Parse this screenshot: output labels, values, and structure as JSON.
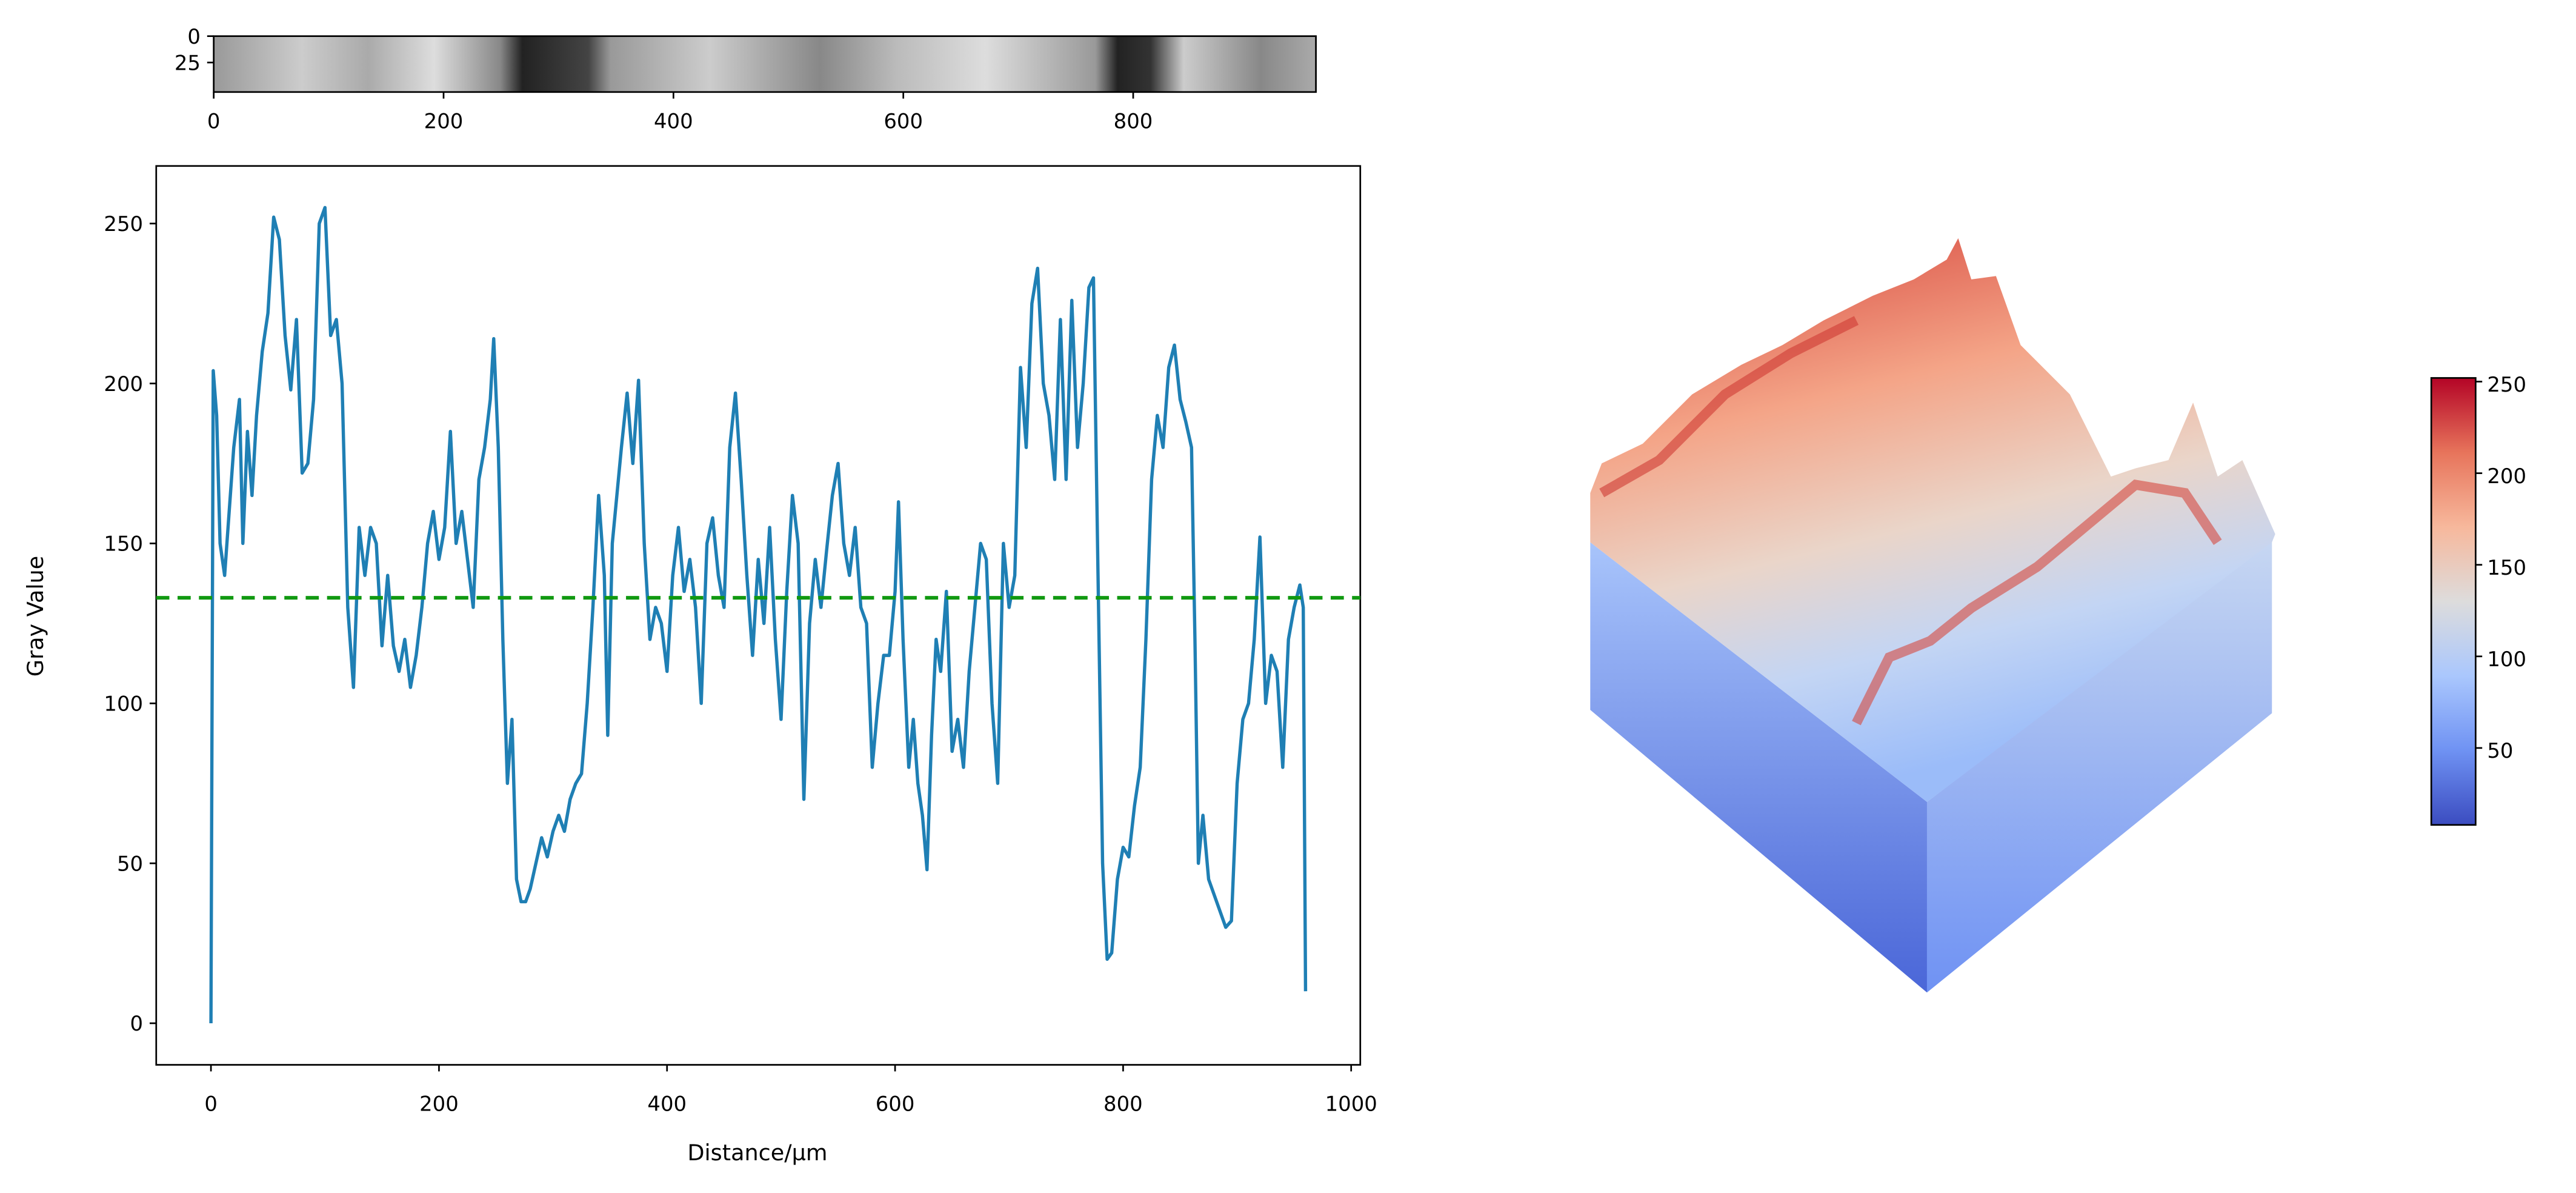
{
  "chart_data": [
    {
      "type": "image",
      "xlim": [
        0,
        959
      ],
      "ylim": [
        0,
        53
      ],
      "y_inverted": true,
      "xticks": [
        0,
        200,
        400,
        600,
        800
      ],
      "yticks": [
        0,
        25
      ]
    },
    {
      "type": "line",
      "xlabel": "Distance/µm",
      "ylabel": "Gray Value",
      "xlim": [
        -48,
        1008
      ],
      "ylim": [
        -13,
        268
      ],
      "xticks": [
        0,
        200,
        400,
        600,
        800,
        1000
      ],
      "yticks": [
        0,
        50,
        100,
        150,
        200,
        250
      ],
      "color": "#1f7fb4",
      "x": [
        0,
        2,
        5,
        8,
        12,
        16,
        20,
        25,
        28,
        32,
        36,
        40,
        45,
        50,
        55,
        60,
        65,
        70,
        75,
        80,
        85,
        90,
        95,
        100,
        105,
        110,
        115,
        120,
        125,
        130,
        135,
        140,
        145,
        150,
        155,
        160,
        165,
        170,
        175,
        180,
        185,
        190,
        195,
        200,
        205,
        210,
        215,
        220,
        225,
        230,
        235,
        240,
        245,
        248,
        252,
        256,
        260,
        264,
        268,
        272,
        276,
        280,
        285,
        290,
        295,
        300,
        305,
        310,
        315,
        320,
        325,
        330,
        335,
        340,
        345,
        348,
        352,
        356,
        360,
        365,
        370,
        375,
        380,
        385,
        390,
        395,
        400,
        405,
        410,
        415,
        420,
        425,
        430,
        435,
        440,
        445,
        450,
        455,
        460,
        465,
        470,
        475,
        480,
        485,
        490,
        495,
        500,
        505,
        510,
        515,
        520,
        525,
        530,
        535,
        540,
        545,
        550,
        555,
        560,
        565,
        570,
        575,
        580,
        585,
        590,
        595,
        600,
        603,
        607,
        612,
        616,
        620,
        624,
        628,
        632,
        636,
        640,
        645,
        650,
        655,
        660,
        665,
        670,
        675,
        680,
        685,
        690,
        695,
        700,
        705,
        710,
        715,
        720,
        725,
        730,
        735,
        740,
        745,
        750,
        755,
        760,
        765,
        770,
        774,
        778,
        782,
        786,
        790,
        795,
        800,
        805,
        810,
        815,
        820,
        825,
        830,
        835,
        840,
        845,
        850,
        855,
        860,
        863,
        866,
        870,
        875,
        880,
        885,
        890,
        895,
        900,
        905,
        910,
        915,
        920,
        925,
        930,
        935,
        940,
        945,
        950,
        955,
        958,
        960
      ],
      "values": [
        0,
        204,
        190,
        150,
        140,
        160,
        180,
        195,
        150,
        185,
        165,
        190,
        210,
        222,
        252,
        245,
        215,
        198,
        220,
        172,
        175,
        195,
        250,
        255,
        215,
        220,
        200,
        130,
        105,
        155,
        140,
        155,
        150,
        118,
        140,
        118,
        110,
        120,
        105,
        115,
        130,
        150,
        160,
        145,
        155,
        185,
        150,
        160,
        145,
        130,
        170,
        180,
        195,
        214,
        180,
        120,
        75,
        95,
        45,
        38,
        38,
        42,
        50,
        58,
        52,
        60,
        65,
        60,
        70,
        75,
        78,
        100,
        130,
        165,
        140,
        90,
        150,
        165,
        180,
        197,
        175,
        201,
        150,
        120,
        130,
        125,
        110,
        140,
        155,
        135,
        145,
        130,
        100,
        150,
        158,
        140,
        130,
        180,
        197,
        170,
        140,
        115,
        145,
        125,
        155,
        120,
        95,
        135,
        165,
        150,
        70,
        125,
        145,
        130,
        148,
        165,
        175,
        150,
        140,
        155,
        130,
        125,
        80,
        100,
        115,
        115,
        135,
        163,
        120,
        80,
        95,
        75,
        65,
        48,
        90,
        120,
        110,
        135,
        85,
        95,
        80,
        110,
        130,
        150,
        145,
        100,
        75,
        150,
        130,
        140,
        205,
        180,
        225,
        236,
        200,
        190,
        170,
        220,
        170,
        226,
        180,
        200,
        230,
        233,
        140,
        50,
        20,
        22,
        45,
        55,
        52,
        68,
        80,
        120,
        170,
        190,
        180,
        205,
        212,
        195,
        188,
        180,
        120,
        50,
        65,
        45,
        40,
        35,
        30,
        32,
        75,
        95,
        100,
        120,
        152,
        100,
        115,
        110,
        80,
        120,
        130,
        137,
        130,
        10
      ],
      "hlines": [
        {
          "value": 133,
          "color": "#119911",
          "style": "dashed"
        }
      ]
    },
    {
      "type": "surface3d",
      "colorbar": {
        "lim": [
          8,
          252
        ],
        "ticks": [
          50,
          100,
          150,
          200,
          250
        ],
        "colors": [
          "#3b4cc0",
          "#6f92f3",
          "#aac7fd",
          "#dddcdc",
          "#f7b89c",
          "#e7745b",
          "#b40426"
        ]
      }
    }
  ]
}
